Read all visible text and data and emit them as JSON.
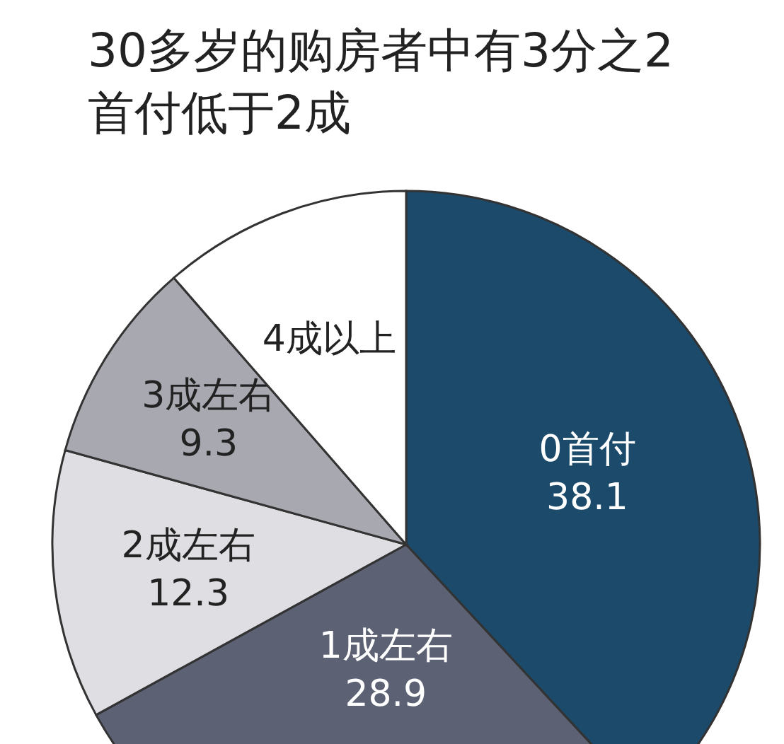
{
  "chart_data": {
    "type": "pie",
    "title": "30多岁的购房者中有3分之2首付低于2成",
    "categories": [
      "0首付",
      "1成左右",
      "2成左右",
      "3成左右",
      "4成以上"
    ],
    "values": [
      38.1,
      28.9,
      12.3,
      9.3,
      11.4
    ],
    "value_labels": [
      "38.1",
      "28.9",
      "12.3",
      "9.3",
      null
    ],
    "colors": [
      "#1b4a6b",
      "#5c6273",
      "#dedee3",
      "#a8a8b0",
      "#ffffff"
    ]
  }
}
